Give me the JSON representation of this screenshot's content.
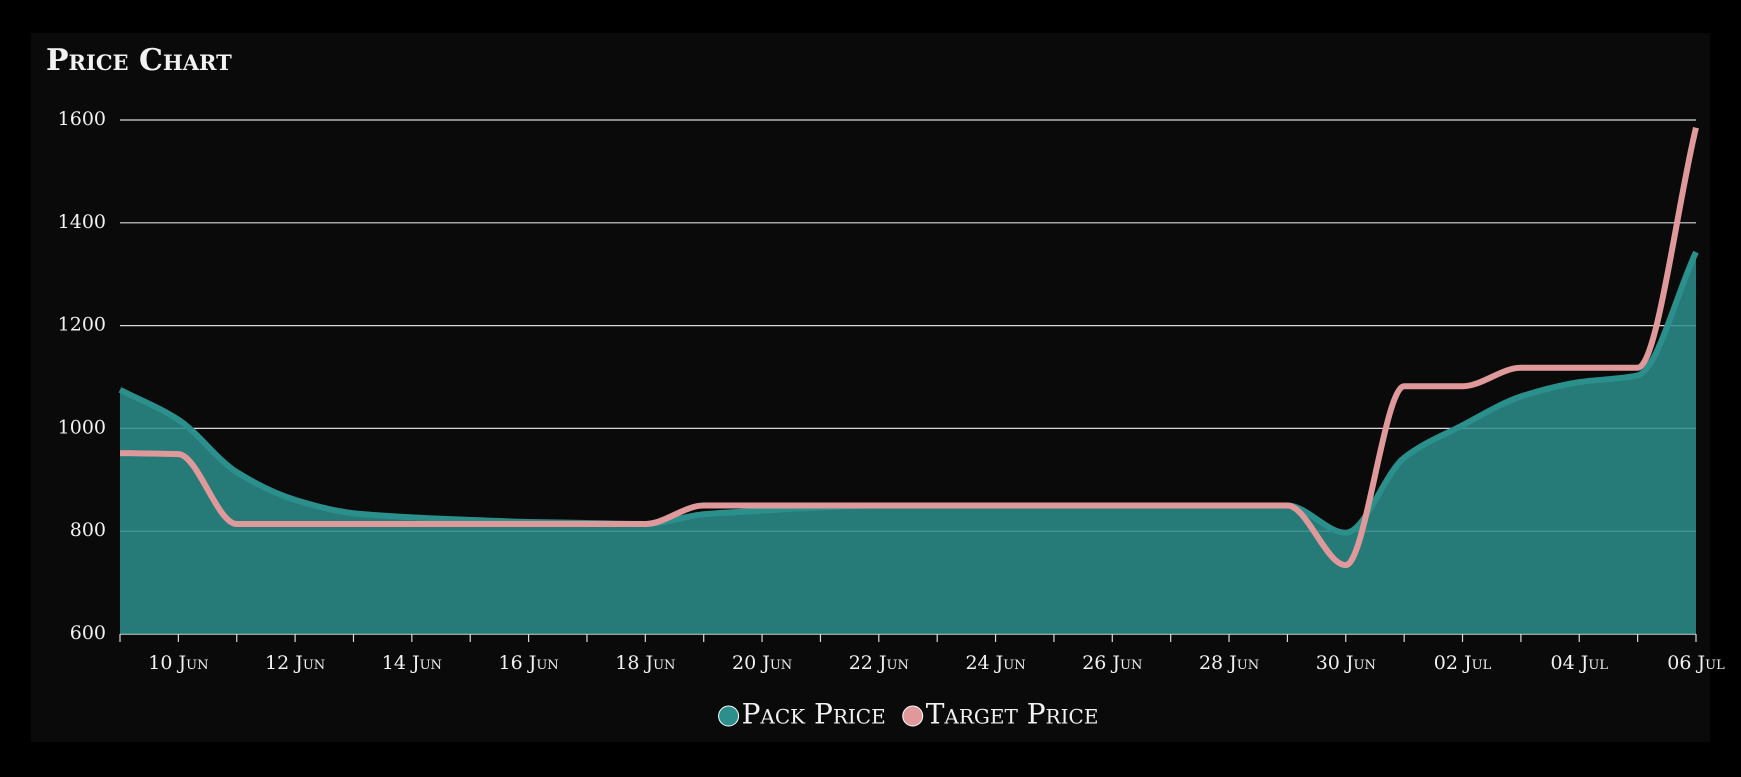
{
  "chart_data": {
    "type": "area-line",
    "title": "Price Chart",
    "categories": [
      null,
      "10 Jun",
      null,
      "12 Jun",
      null,
      "14 Jun",
      null,
      "16 Jun",
      null,
      "18 Jun",
      null,
      "20 Jun",
      null,
      "22 Jun",
      null,
      "24 Jun",
      null,
      "26 Jun",
      null,
      "28 Jun",
      null,
      "30 Jun",
      null,
      "02 Jul",
      null,
      "04 Jul",
      null,
      "06 Jul"
    ],
    "series": [
      {
        "name": "Pack Price",
        "color": "#2b8f8c",
        "fill": true,
        "values": [
          1075,
          1017,
          915,
          861,
          835,
          827,
          822,
          818,
          816,
          814,
          833,
          840,
          846,
          850,
          850,
          850,
          850,
          850,
          850,
          850,
          850,
          797,
          943,
          1006,
          1062,
          1090,
          1103,
          1343
        ]
      },
      {
        "name": "Target Price",
        "color": "#e0999b",
        "fill": false,
        "values": [
          952,
          950,
          814,
          814,
          814,
          814,
          814,
          814,
          814,
          814,
          850,
          850,
          850,
          850,
          850,
          850,
          850,
          850,
          850,
          850,
          850,
          734,
          1082,
          1082,
          1118,
          1118,
          1118,
          1585
        ]
      }
    ],
    "ylim": [
      600,
      1600
    ],
    "yticks": [
      600,
      800,
      1000,
      1200,
      1400,
      1600
    ],
    "grid": true,
    "legend": "bottom"
  }
}
